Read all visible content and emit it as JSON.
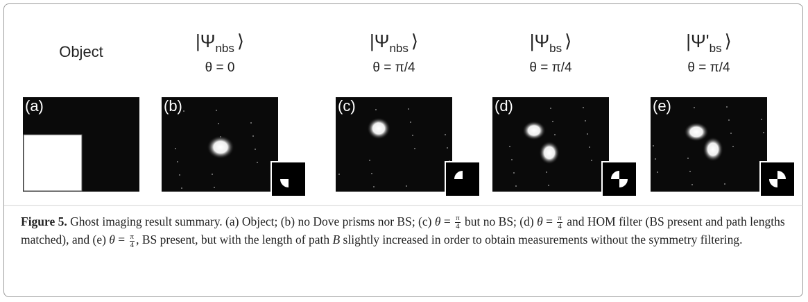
{
  "panels": [
    {
      "title": "Object",
      "label": "(a)"
    },
    {
      "ket_open": "|Ψ",
      "ket_sub": "nbs",
      "ket_close": "⟩",
      "angle": "θ = 0",
      "label": "(b)"
    },
    {
      "ket_open": "|Ψ",
      "ket_sub": "nbs",
      "ket_close": "⟩",
      "angle": "θ = π/4",
      "label": "(c)"
    },
    {
      "ket_open": "|Ψ",
      "ket_sub": "bs",
      "ket_close": "⟩",
      "angle": "θ = π/4",
      "label": "(d)"
    },
    {
      "ket_open": "|Ψ'",
      "ket_sub": "bs",
      "ket_close": "⟩",
      "angle": "θ = π/4",
      "label": "(e)"
    }
  ],
  "caption": {
    "label": "Figure 5.",
    "fraction": {
      "num": "π",
      "den": "4"
    },
    "parts": [
      "Ghost imaging result summary. (a) Object; (b) no Dove prisms nor BS; (c) ",
      "θ",
      " = ",
      " but no BS; (d) ",
      " and HOM filter (BS present and path lengths matched), and (e) ",
      ", BS present, but with the length of path ",
      "B",
      " slightly increased in order to obtain measurements without the symmetry filtering."
    ]
  }
}
